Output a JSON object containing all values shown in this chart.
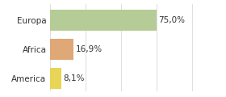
{
  "categories": [
    "Europa",
    "Africa",
    "America"
  ],
  "values": [
    75.0,
    16.9,
    8.1
  ],
  "bar_colors": [
    "#b5cc96",
    "#dfa876",
    "#e8d455"
  ],
  "labels": [
    "75,0%",
    "16,9%",
    "8,1%"
  ],
  "background_color": "#ffffff",
  "xlim": [
    0,
    105
  ],
  "ylim": [
    -0.45,
    2.55
  ],
  "label_fontsize": 7.5,
  "tick_fontsize": 7.5,
  "bar_height": 0.72,
  "grid_color": "#e0e0e0"
}
